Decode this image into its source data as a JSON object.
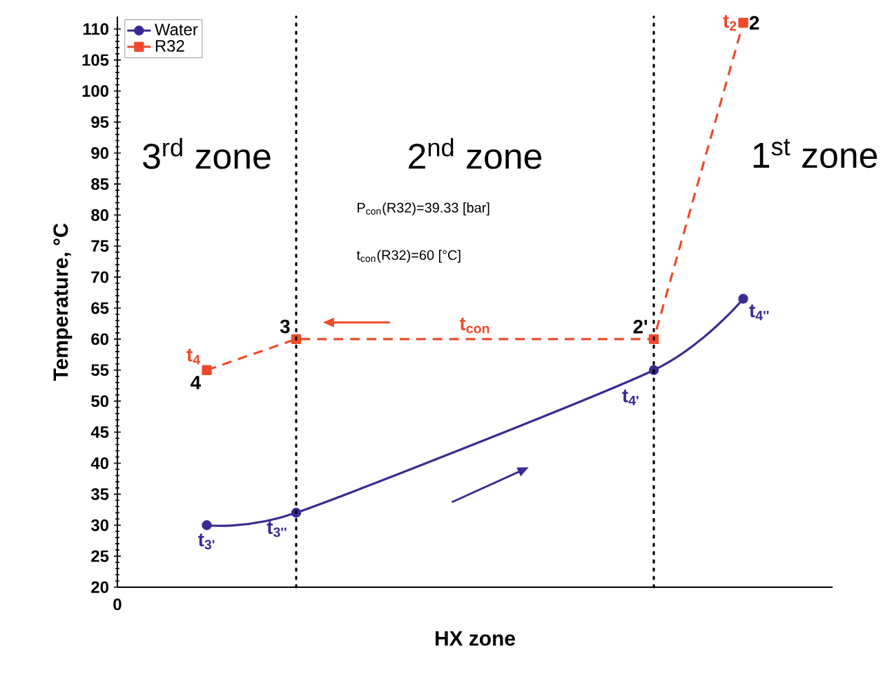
{
  "chart_data": {
    "type": "line",
    "xlabel": "HX zone",
    "ylabel": "Temperature, °C",
    "categories": [
      null,
      null,
      null,
      null,
      null,
      null,
      null
    ],
    "ylim": [
      20,
      112
    ],
    "yticks": [
      20,
      25,
      30,
      35,
      40,
      45,
      50,
      55,
      60,
      65,
      70,
      75,
      80,
      85,
      90,
      95,
      100,
      105,
      110
    ],
    "legend": "top left",
    "series": [
      {
        "name": "Water",
        "color": "#3b2a92",
        "values": [
          30,
          32,
          null,
          null,
          null,
          55,
          66.5
        ],
        "marker": "circle",
        "line_style": "solid"
      },
      {
        "name": "R32",
        "color": "#ee4a2a",
        "values": [
          55,
          60,
          null,
          null,
          null,
          60,
          111
        ],
        "marker": "square",
        "line_style": "dashed"
      }
    ],
    "annotations": [
      "t$_{3'}$",
      "t$_{3''}$",
      "t$_{4'}$",
      "t$_{4''}$",
      "t$_{2}$",
      "2",
      "t$_{4}$",
      "4",
      "3",
      "2'",
      "t$_{con}$",
      "3$^{rd}$ zone",
      "2$^{nd}$ zone",
      "1$^{st}$ zone",
      "P$_{con}$(R32)=39.33 [bar]",
      "t$_{con}$(R32)=60 [°C]",
      "0"
    ]
  }
}
